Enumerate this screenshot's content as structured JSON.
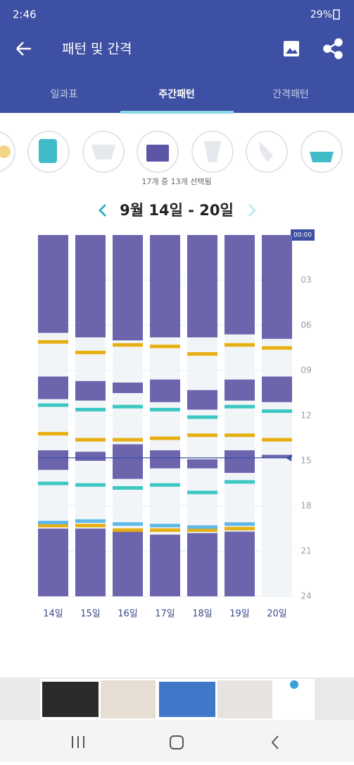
{
  "status": {
    "time": "2:46",
    "battery": "29%"
  },
  "header": {
    "title": "패턴 및 간격"
  },
  "tabs": [
    "일과표",
    "주간패턴",
    "간격패턴"
  ],
  "selection": "17개 중 13개 선택됨",
  "range": "9월 14일 - 20일",
  "chart": {
    "ylim": [
      0,
      24
    ],
    "y_labels": [
      "00:00",
      "03",
      "06",
      "09",
      "12",
      "15",
      "18",
      "21",
      "24"
    ],
    "now": 14.8,
    "days": [
      {
        "label": "14일",
        "sleep": [
          [
            0,
            6.5
          ],
          [
            9.4,
            10.9
          ],
          [
            14.3,
            15.6
          ],
          [
            19.5,
            24
          ]
        ],
        "yellow": [
          7.1,
          13.2,
          19.3
        ],
        "teal": [
          11.3,
          16.5
        ],
        "blue": [
          19.1
        ]
      },
      {
        "label": "15일",
        "sleep": [
          [
            0,
            6.8
          ],
          [
            9.7,
            11.0
          ],
          [
            14.4,
            15.0
          ],
          [
            19.5,
            24
          ]
        ],
        "yellow": [
          7.8,
          13.6,
          19.3
        ],
        "teal": [
          11.6,
          16.6
        ],
        "blue": [
          19.0
        ]
      },
      {
        "label": "16일",
        "sleep": [
          [
            0,
            7.0
          ],
          [
            9.8,
            10.5
          ],
          [
            13.9,
            16.2
          ],
          [
            19.7,
            24
          ]
        ],
        "yellow": [
          7.3,
          13.6,
          19.6
        ],
        "teal": [
          11.4,
          16.8
        ],
        "blue": [
          19.2
        ]
      },
      {
        "label": "17일",
        "sleep": [
          [
            0,
            6.8
          ],
          [
            9.6,
            11.1
          ],
          [
            14.3,
            15.5
          ],
          [
            19.9,
            24
          ]
        ],
        "yellow": [
          7.4,
          13.5,
          19.6
        ],
        "teal": [
          11.6,
          16.6
        ],
        "blue": [
          19.3
        ]
      },
      {
        "label": "18일",
        "sleep": [
          [
            0,
            6.8
          ],
          [
            10.3,
            11.6
          ],
          [
            14.9,
            15.5
          ],
          [
            19.8,
            24
          ]
        ],
        "yellow": [
          7.9,
          13.3,
          19.6
        ],
        "teal": [
          12.1,
          17.1
        ],
        "blue": [
          19.4
        ]
      },
      {
        "label": "19일",
        "sleep": [
          [
            0,
            6.6
          ],
          [
            9.6,
            11.0
          ],
          [
            14.3,
            15.8
          ],
          [
            19.7,
            24
          ]
        ],
        "yellow": [
          7.3,
          13.3,
          19.5
        ],
        "teal": [
          11.4,
          16.4
        ],
        "blue": [
          19.2
        ]
      },
      {
        "label": "20일",
        "sleep": [
          [
            0,
            6.9
          ],
          [
            9.4,
            11.1
          ],
          [
            14.6,
            14.8
          ]
        ],
        "yellow": [
          7.5,
          13.6
        ],
        "teal": [
          11.7
        ],
        "blue": []
      }
    ]
  }
}
